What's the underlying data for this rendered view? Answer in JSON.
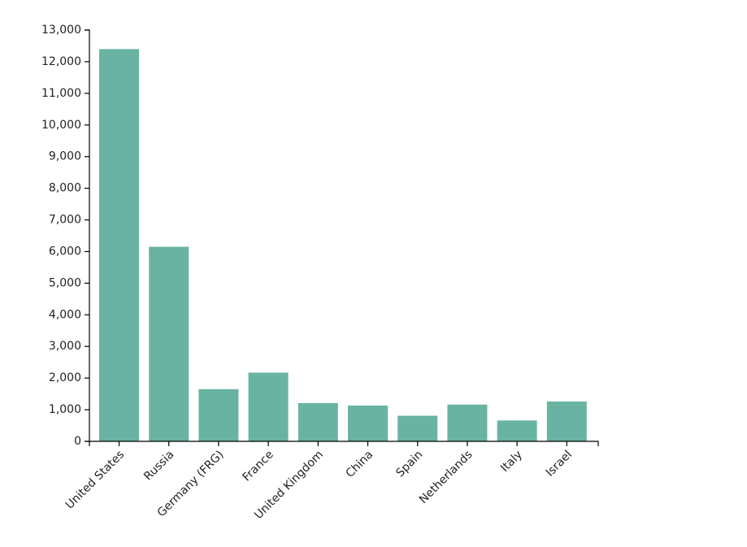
{
  "chart_data": {
    "type": "bar",
    "title": "",
    "xlabel": "",
    "ylabel": "",
    "categories": [
      "United States",
      "Russia",
      "Germany (FRG)",
      "France",
      "United Kingdom",
      "China",
      "Spain",
      "Netherlands",
      "Italy",
      "Israel"
    ],
    "values": [
      12400,
      6150,
      1650,
      2170,
      1210,
      1130,
      810,
      1160,
      660,
      1260
    ],
    "ylim": [
      0,
      13000
    ],
    "yticks": [
      0,
      1000,
      2000,
      3000,
      4000,
      5000,
      6000,
      7000,
      8000,
      9000,
      10000,
      11000,
      12000,
      13000
    ],
    "ytick_labels": [
      "0",
      "1,000",
      "2,000",
      "3,000",
      "4,000",
      "5,000",
      "6,000",
      "7,000",
      "8,000",
      "9,000",
      "10,000",
      "11,000",
      "12,000",
      "13,000"
    ],
    "bar_color": "#69b3a2",
    "grid": false,
    "legend": "none"
  }
}
